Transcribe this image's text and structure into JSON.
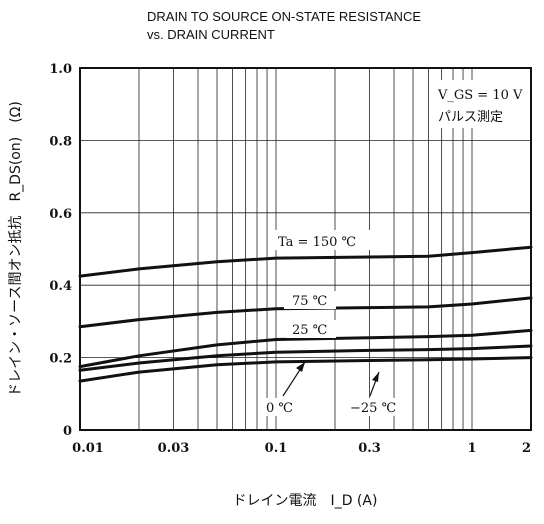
{
  "chart_data": {
    "type": "line",
    "title": "DRAIN TO SOURCE ON-STATE RESISTANCE",
    "subtitle": "vs. DRAIN CURRENT",
    "xlabel": "ドレイン電流　I_D  (A)",
    "ylabel": "ドレイン・ソース間オン抵抗　R_DS(on)　(Ω)",
    "xscale": "log",
    "xlim": [
      0.01,
      2
    ],
    "ylim": [
      0,
      1.0
    ],
    "x_ticks": [
      0.01,
      0.03,
      0.1,
      0.3,
      1,
      2
    ],
    "x_tick_labels": [
      "0.01",
      "0.03",
      "0.1",
      "0.3",
      "1",
      "2"
    ],
    "y_ticks": [
      0,
      0.2,
      0.4,
      0.6,
      0.8,
      1.0
    ],
    "y_tick_labels": [
      "0",
      "0.2",
      "0.4",
      "0.6",
      "0.8",
      "1.0"
    ],
    "grid": true,
    "conditions": [
      "V_GS = 10 V",
      "パルス測定"
    ],
    "series": [
      {
        "name": "Ta = 150 ℃",
        "x": [
          0.01,
          0.02,
          0.05,
          0.1,
          0.3,
          0.6,
          1.0,
          2.0
        ],
        "y": [
          0.425,
          0.445,
          0.465,
          0.475,
          0.478,
          0.48,
          0.49,
          0.505
        ]
      },
      {
        "name": "75 ℃",
        "x": [
          0.01,
          0.02,
          0.05,
          0.1,
          0.3,
          0.6,
          1.0,
          2.0
        ],
        "y": [
          0.285,
          0.305,
          0.325,
          0.335,
          0.338,
          0.34,
          0.348,
          0.365
        ]
      },
      {
        "name": "25 ℃",
        "x": [
          0.01,
          0.02,
          0.05,
          0.1,
          0.3,
          0.6,
          1.0,
          2.0
        ],
        "y": [
          0.175,
          0.205,
          0.235,
          0.25,
          0.255,
          0.258,
          0.262,
          0.275
        ]
      },
      {
        "name": "0 ℃",
        "x": [
          0.01,
          0.02,
          0.05,
          0.1,
          0.3,
          0.6,
          1.0,
          2.0
        ],
        "y": [
          0.165,
          0.185,
          0.205,
          0.215,
          0.22,
          0.222,
          0.225,
          0.232
        ]
      },
      {
        "name": "−25 ℃",
        "x": [
          0.01,
          0.02,
          0.05,
          0.1,
          0.3,
          0.6,
          1.0,
          2.0
        ],
        "y": [
          0.135,
          0.16,
          0.18,
          0.188,
          0.192,
          0.194,
          0.196,
          0.2
        ]
      }
    ]
  }
}
